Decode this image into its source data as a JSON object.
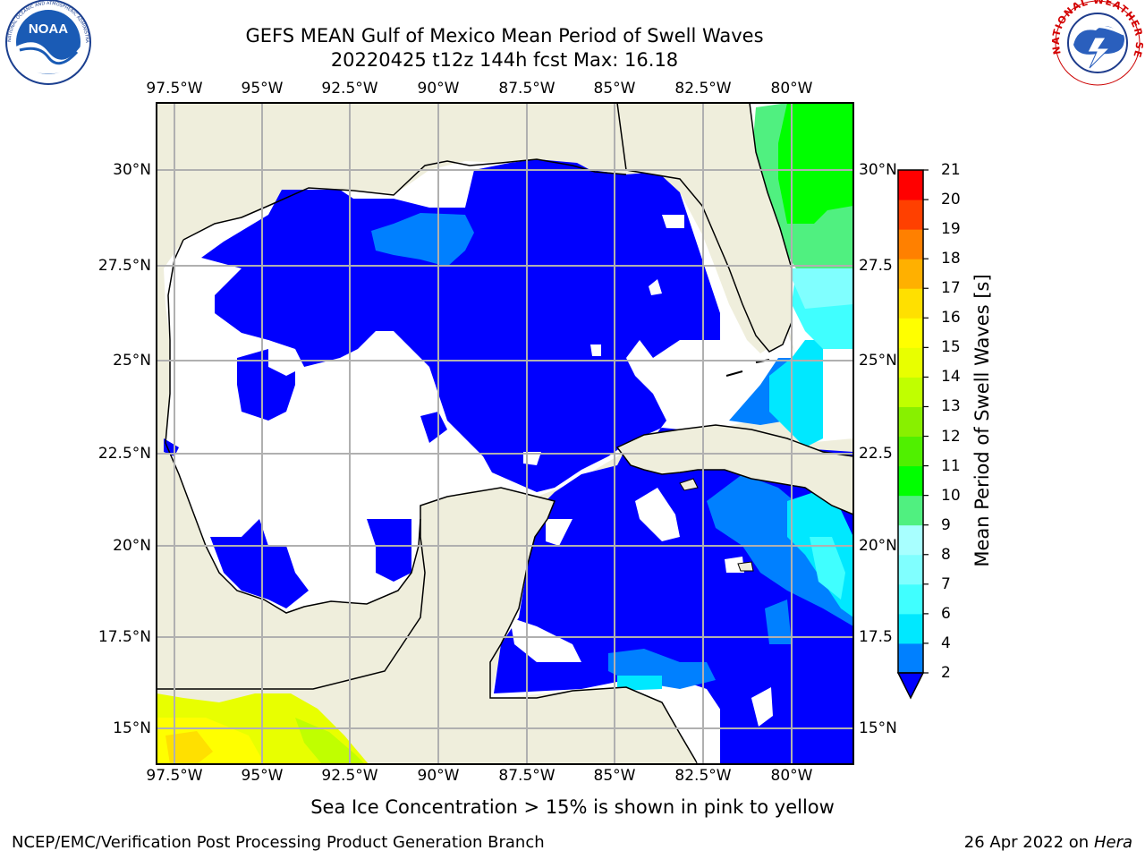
{
  "header": {
    "title_line1": "GEFS MEAN Gulf of Mexico Mean Period of Swell Waves",
    "title_line2": "20220425 t12z 144h fcst   Max: 16.18"
  },
  "logos": {
    "noaa": "NOAA",
    "noaa_ring_text": "NATIONAL OCEANIC AND ATMOSPHERIC ADMINISTRATION · U.S. DEPARTMENT OF COMMERCE",
    "nws_ring_text": "NATIONAL WEATHER SERVICE"
  },
  "map": {
    "lon_labels": [
      "97.5°W",
      "95°W",
      "92.5°W",
      "90°W",
      "87.5°W",
      "85°W",
      "82.5°W",
      "80°W"
    ],
    "lat_labels_left": [
      "30°N",
      "27.5°N",
      "25°N",
      "22.5°N",
      "20°N",
      "17.5°N",
      "15°N"
    ],
    "lat_labels_right": [
      "30°N",
      "27.5",
      "25°N",
      "22.5",
      "20°N",
      "17.5",
      "15°N"
    ],
    "colors": {
      "land": "#efeedc",
      "ocean_low": "#0000ff",
      "grid": "#b0b0b0"
    }
  },
  "colorbar": {
    "title": "Mean Period of Swell Waves [s]",
    "tick_labels": [
      "2",
      "4",
      "6",
      "7",
      "8",
      "9",
      "10",
      "11",
      "12",
      "13",
      "14",
      "15",
      "16",
      "17",
      "18",
      "19",
      "20",
      "21"
    ],
    "colors": [
      "#0000ff",
      "#0080ff",
      "#00e8ff",
      "#40ffff",
      "#80ffff",
      "#a8ffff",
      "#50f080",
      "#00ff00",
      "#50f000",
      "#88f000",
      "#c0ff00",
      "#e8ff00",
      "#ffff00",
      "#ffe000",
      "#ffb000",
      "#ff8000",
      "#ff4000",
      "#ff0000"
    ]
  },
  "footnote": "Sea Ice Concentration > 15% is shown in pink to yellow",
  "footer": {
    "left": "NCEP/EMC/Verification Post Processing Product Generation Branch",
    "right_date": "26 Apr 2022 on ",
    "right_host": "Hera"
  }
}
